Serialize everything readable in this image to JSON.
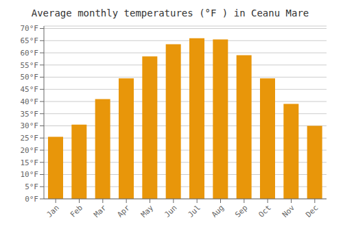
{
  "chart_data": {
    "type": "bar",
    "title": "Average monthly temperatures (°F ) in Ceanu Mare",
    "categories": [
      "Jan",
      "Feb",
      "Mar",
      "Apr",
      "May",
      "Jun",
      "Jul",
      "Aug",
      "Sep",
      "Oct",
      "Nov",
      "Dec"
    ],
    "values": [
      25.5,
      30.5,
      41.0,
      49.5,
      58.5,
      63.5,
      66.0,
      65.5,
      59.0,
      49.5,
      39.0,
      30.0
    ],
    "color": "#E8960A",
    "ylim": [
      0,
      71
    ],
    "yticks": [
      {
        "value": 0,
        "label": "0°F"
      },
      {
        "value": 5,
        "label": "5°F"
      },
      {
        "value": 10,
        "label": "10°F"
      },
      {
        "value": 15,
        "label": "15°F"
      },
      {
        "value": 20,
        "label": "20°F"
      },
      {
        "value": 25,
        "label": "25°F"
      },
      {
        "value": 30,
        "label": "30°F"
      },
      {
        "value": 35,
        "label": "35°F"
      },
      {
        "value": 40,
        "label": "40°F"
      },
      {
        "value": 45,
        "label": "45°F"
      },
      {
        "value": 50,
        "label": "50°F"
      },
      {
        "value": 55,
        "label": "55°F"
      },
      {
        "value": 60,
        "label": "60°F"
      },
      {
        "value": 65,
        "label": "65°F"
      },
      {
        "value": 70,
        "label": "70°F"
      }
    ],
    "grid": true
  }
}
